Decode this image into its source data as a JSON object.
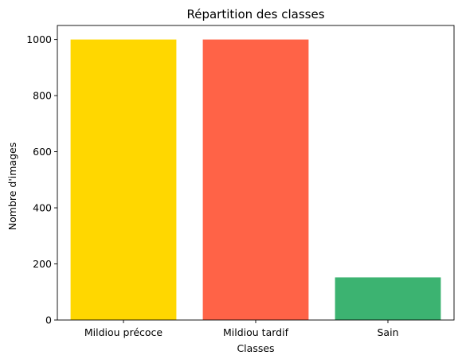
{
  "chart_data": {
    "type": "bar",
    "title": "Répartition des classes",
    "xlabel": "Classes",
    "ylabel": "Nombre d'images",
    "categories": [
      "Mildiou précoce",
      "Mildiou tardif",
      "Sain"
    ],
    "values": [
      1000,
      1000,
      152
    ],
    "colors": [
      "#FFD700",
      "#FF6347",
      "#3CB371"
    ],
    "ylim": [
      0,
      1050
    ],
    "yticks": [
      0,
      200,
      400,
      600,
      800,
      1000
    ],
    "grid": false
  }
}
